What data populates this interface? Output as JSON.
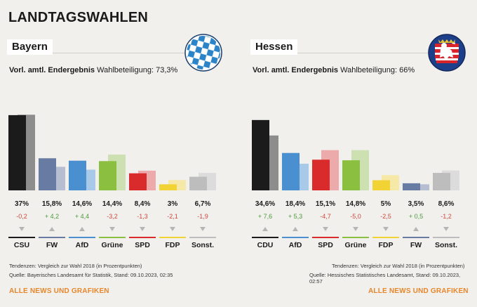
{
  "main_title": "LANDTAGSWAHLEN",
  "bayern": {
    "state": "Bayern",
    "result_label": "Vorl. amtl. Endergebnis",
    "turnout": "Wahlbeteiligung: 73,3%",
    "crest_icon": "bavaria-lozenge-crest-icon",
    "footnote_1": "Tendenzen: Vergleich zur Wahl 2018 (in Prozentpunkten)",
    "footnote_2": "Quelle: Bayerisches Landesamt für Statistik, Stand: 09.10.2023, 02:35",
    "link": "ALLE NEWS UND GRAFIKEN"
  },
  "hessen": {
    "state": "Hessen",
    "result_label": "Vorl. amtl. Endergebnis",
    "turnout": "Wahlbeteiligung: 66%",
    "crest_icon": "hessen-lion-crest-icon",
    "footnote_1": "Tendenzen: Vergleich zur Wahl 2018 (in Prozentpunkten)",
    "footnote_2": "Quelle: Hessisches Statistisches Landesamt, Stand: 09.10.2023, 02:57",
    "link": "ALLE NEWS UND GRAFIKEN"
  },
  "chart_data": [
    {
      "type": "bar",
      "categories": [
        "CSU",
        "FW",
        "AfD",
        "Grüne",
        "SPD",
        "FDP",
        "Sonst."
      ],
      "series": [
        {
          "name": "",
          "values": [
            37.0,
            15.8,
            14.6,
            14.4,
            8.4,
            3.0,
            6.7
          ]
        },
        {
          "name": "",
          "values": [
            37.2,
            11.6,
            10.2,
            17.6,
            9.7,
            5.1,
            8.6
          ]
        }
      ],
      "value_labels": [
        "37%",
        "15,8%",
        "14,6%",
        "14,4%",
        "8,4%",
        "3%",
        "6,7%"
      ],
      "diff_labels": [
        "-0,2",
        "+ 4,2",
        "+ 4,4",
        "-3,2",
        "-1,3",
        "-2,1",
        "-1,9"
      ],
      "diff_signs": [
        "neg",
        "pos",
        "pos",
        "neg",
        "neg",
        "neg",
        "neg"
      ],
      "colors": [
        "#1b1b1b",
        "#687ca3",
        "#4a8fcf",
        "#8bbf3f",
        "#d92b2b",
        "#f2d335",
        "#bdbdbd"
      ],
      "prev_colors": [
        "#8d8d8d",
        "#b6bfd2",
        "#a9c9e8",
        "#cce0b1",
        "#ecaaaa",
        "#f6e9a7",
        "#dcdcdc"
      ],
      "ylim": [
        0,
        38
      ],
      "diff_positive_color": "#4a9a3a",
      "diff_negative_color": "#d0463c"
    },
    {
      "type": "bar",
      "categories": [
        "CDU",
        "AfD",
        "SPD",
        "Grüne",
        "FDP",
        "FW",
        "Sonst."
      ],
      "series": [
        {
          "name": "",
          "values": [
            34.6,
            18.4,
            15.1,
            14.8,
            5.0,
            3.5,
            8.6
          ]
        },
        {
          "name": "",
          "values": [
            27.0,
            13.1,
            19.8,
            19.8,
            7.5,
            3.0,
            9.8
          ]
        }
      ],
      "value_labels": [
        "34,6%",
        "18,4%",
        "15,1%",
        "14,8%",
        "5%",
        "3,5%",
        "8,6%"
      ],
      "diff_labels": [
        "+ 7,6",
        "+ 5,3",
        "-4,7",
        "-5,0",
        "-2,5",
        "+ 0,5",
        "-1,2"
      ],
      "diff_signs": [
        "pos",
        "pos",
        "neg",
        "neg",
        "neg",
        "pos",
        "neg"
      ],
      "colors": [
        "#1b1b1b",
        "#4a8fcf",
        "#d92b2b",
        "#8bbf3f",
        "#f2d335",
        "#687ca3",
        "#bdbdbd"
      ],
      "prev_colors": [
        "#8d8d8d",
        "#a9c9e8",
        "#ecaaaa",
        "#cce0b1",
        "#f6e9a7",
        "#b6bfd2",
        "#dcdcdc"
      ],
      "ylim": [
        0,
        38
      ],
      "diff_positive_color": "#4a9a3a",
      "diff_negative_color": "#d0463c"
    }
  ]
}
